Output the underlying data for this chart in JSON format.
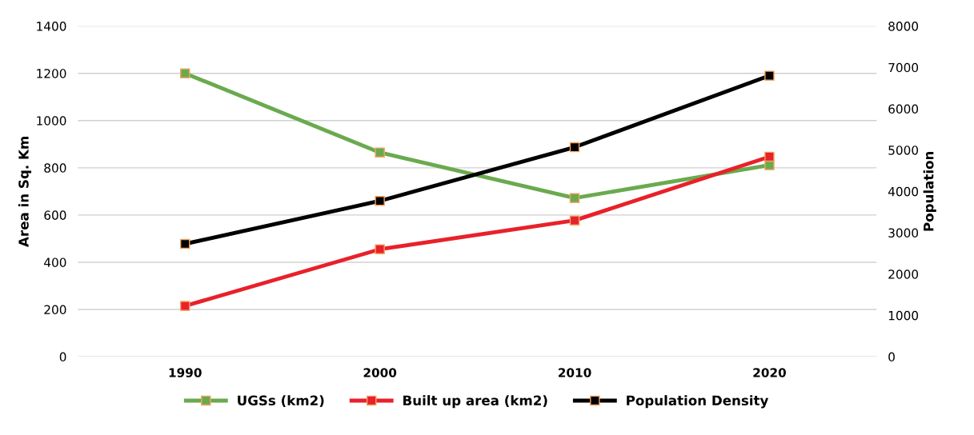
{
  "chart_data": {
    "type": "line",
    "xlabel": null,
    "ylabel": "Area in Sq. Km",
    "y2label": "Population",
    "categories": [
      "1990",
      "2000",
      "2010",
      "2020"
    ],
    "series": [
      {
        "name": "UGSs (km2)",
        "color": "#6aaa4f",
        "values": [
          1200,
          865,
          672,
          811
        ]
      },
      {
        "name": "Built up area (km2)",
        "color": "#e8212a",
        "values": [
          215,
          455,
          577,
          847
        ]
      },
      {
        "name": "Population Density",
        "color": "#000000",
        "values": [
          2730,
          3770,
          5070,
          6800
        ],
        "axis": "y2"
      }
    ],
    "ylim": [
      0,
      1400
    ],
    "yticks": [
      0,
      200,
      400,
      600,
      800,
      1000,
      1200,
      1400
    ],
    "y2lim": [
      0,
      8000
    ],
    "y2ticks": [
      0,
      1000,
      2000,
      3000,
      4000,
      5000,
      6000,
      7000,
      8000
    ],
    "grid": "y",
    "legend": "bottom",
    "marker": "square",
    "line_style": "solid"
  }
}
